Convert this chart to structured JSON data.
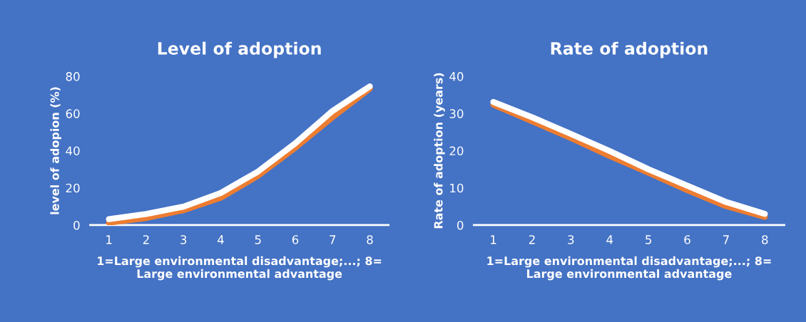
{
  "chart_data": [
    {
      "type": "line",
      "title": "Level of adoption",
      "xlabel": "1=Large environmental disadvantage;...; 8=\nLarge environmental advantage",
      "ylabel": "level of adopion (%)",
      "categories": [
        "1",
        "2",
        "3",
        "4",
        "5",
        "6",
        "7",
        "8"
      ],
      "series": [
        {
          "color": "#ed7d31",
          "values": [
            1.3,
            3.8,
            8,
            14.7,
            26.5,
            41.6,
            58,
            73.4
          ]
        },
        {
          "color": "#ffffff",
          "values": [
            3.2,
            6,
            9.9,
            17.3,
            28.8,
            44,
            61.4,
            74.6
          ]
        }
      ],
      "ylim": [
        0,
        80
      ],
      "yticks": [
        0,
        20,
        40,
        60,
        80
      ],
      "grid": false,
      "marker": "none",
      "line_style": "solid"
    },
    {
      "type": "line",
      "title": "Rate of adoption",
      "xlabel": "1=Large environmental disadvantage;...; 8=\nLarge environmental advantage",
      "ylabel": "Rate of adoption (years)",
      "categories": [
        "1",
        "2",
        "3",
        "4",
        "5",
        "6",
        "7",
        "8"
      ],
      "series": [
        {
          "color": "#ed7d31",
          "values": [
            32.4,
            27.9,
            23.4,
            18.6,
            14.1,
            9.4,
            5.1,
            2.2
          ]
        },
        {
          "color": "#ffffff",
          "values": [
            33.1,
            29,
            24.5,
            19.9,
            15,
            10.6,
            6.2,
            3
          ]
        }
      ],
      "ylim": [
        0,
        40
      ],
      "yticks": [
        0,
        10,
        20,
        30,
        40
      ],
      "grid": false,
      "marker": "none",
      "line_style": "solid"
    }
  ]
}
